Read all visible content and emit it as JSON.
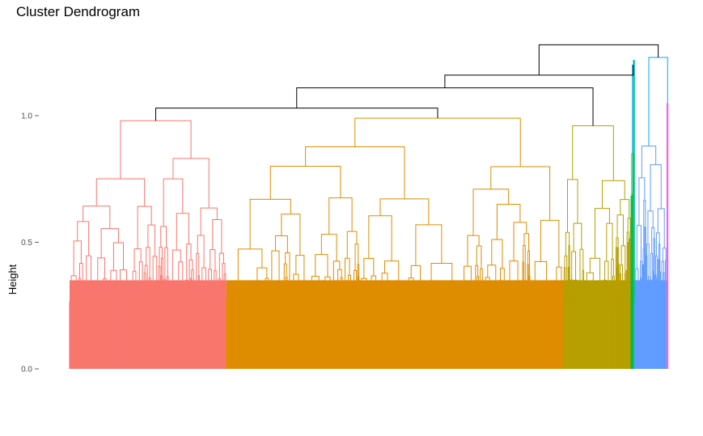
{
  "chart_data": {
    "type": "dendrogram",
    "title": "Cluster Dendrogram",
    "xlabel": "",
    "ylabel": "Height",
    "ylim": [
      0.0,
      1.3
    ],
    "y_ticks": [
      {
        "value": 0.0,
        "label": "0.0"
      },
      {
        "value": 0.5,
        "label": "0.5"
      },
      {
        "value": 1.0,
        "label": "1.0"
      }
    ],
    "grid": false,
    "n_leaves": 1170,
    "clusters": [
      {
        "id": 1,
        "color": "#F8766D",
        "leaf_fraction": 0.262,
        "root_height": 0.98,
        "sub_heights": [
          0.8,
          0.74,
          0.72
        ]
      },
      {
        "id": 2,
        "color": "#DE8C00",
        "leaf_fraction": 0.563,
        "root_height": 0.99,
        "sub_heights": [
          0.84,
          0.77,
          0.69
        ]
      },
      {
        "id": 3,
        "color": "#B79F00",
        "leaf_fraction": 0.113,
        "root_height": 0.96,
        "sub_heights": [
          0.92,
          0.87,
          0.8
        ]
      },
      {
        "id": 4,
        "color": "#00BA38",
        "leaf_fraction": 0.004,
        "root_height": 0.85,
        "sub_heights": [
          0.73
        ]
      },
      {
        "id": 5,
        "color": "#00C08B",
        "leaf_fraction": 0.002,
        "root_height": 1.22,
        "sub_heights": []
      },
      {
        "id": 6,
        "color": "#619CFF",
        "leaf_fraction": 0.054,
        "root_height": 0.88,
        "sub_heights": [
          0.8,
          0.77,
          0.73
        ]
      },
      {
        "id": 7,
        "color": "#F564E3",
        "leaf_fraction": 0.002,
        "root_height": 1.05,
        "sub_heights": []
      }
    ],
    "top_merges": [
      {
        "height": 1.03,
        "between": "cluster 1 + cluster 2"
      },
      {
        "height": 1.11,
        "between": "(1,2) + cluster 3"
      },
      {
        "height": 1.16,
        "between": "(1,2,3) + 4,5"
      },
      {
        "height": 1.23,
        "between": "cluster 6 + cluster 7"
      },
      {
        "height": 1.28,
        "between": "root"
      }
    ]
  }
}
